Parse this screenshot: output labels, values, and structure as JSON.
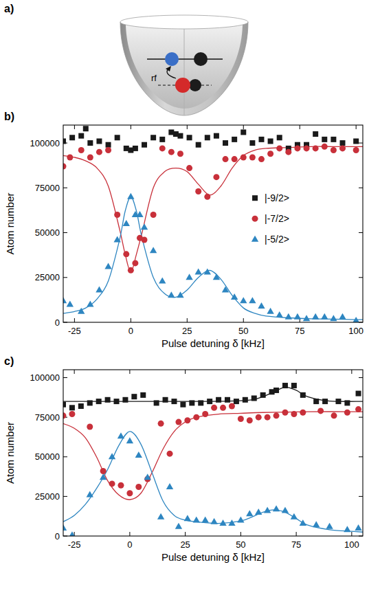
{
  "diagram": {
    "panel": "a)",
    "arrow_label": "rf"
  },
  "chart_data": [
    {
      "type": "scatter",
      "panel": "b)",
      "x_label": "Pulse detuning δ [kHz]",
      "y_label": "Atom number",
      "xlim": [
        -30,
        103
      ],
      "ylim": [
        0,
        110000
      ],
      "xticks": [
        -25,
        0,
        25,
        50,
        75,
        100
      ],
      "yticks": [
        0,
        25000,
        50000,
        75000,
        100000
      ],
      "legend": "right",
      "series": [
        {
          "name": "|-9/2>",
          "color": "#1a1a1a",
          "marker": "square",
          "x": [
            -30,
            -26,
            -22,
            -20,
            -18,
            -14,
            -10,
            -6,
            -2,
            0,
            2,
            6,
            10,
            14,
            18,
            20,
            22,
            26,
            30,
            34,
            38,
            42,
            46,
            50,
            54,
            58,
            62,
            66,
            70,
            74,
            78,
            82,
            86,
            90,
            94,
            100
          ],
          "values": [
            101000,
            103000,
            104000,
            108000,
            100000,
            101000,
            99000,
            103000,
            97000,
            96000,
            97000,
            99000,
            103000,
            102000,
            106000,
            105000,
            104000,
            103000,
            99000,
            103000,
            104000,
            100000,
            102000,
            106000,
            100000,
            102000,
            101000,
            103000,
            97000,
            99000,
            99000,
            105000,
            102000,
            102000,
            100000,
            101000
          ]
        },
        {
          "name": "|-7/2>",
          "color": "#c8303a",
          "marker": "circle",
          "x": [
            -30,
            -27,
            -22,
            -18,
            -14,
            -10,
            -6,
            -2,
            0,
            2,
            4,
            6,
            10,
            14,
            18,
            22,
            26,
            30,
            34,
            38,
            42,
            46,
            50,
            54,
            58,
            62,
            66,
            70,
            74,
            78,
            82,
            86,
            90,
            94,
            100
          ],
          "values": [
            87000,
            92000,
            96000,
            92000,
            95000,
            96000,
            60000,
            38000,
            29000,
            33000,
            47000,
            46000,
            60000,
            97000,
            95000,
            94000,
            86000,
            73000,
            70000,
            81000,
            91000,
            91000,
            92000,
            92000,
            91000,
            94000,
            97000,
            95000,
            97000,
            97000,
            97000,
            98000,
            96000,
            97000,
            96000
          ]
        },
        {
          "name": "|-5/2>",
          "color": "#2e86c1",
          "marker": "triangle",
          "x": [
            -30,
            -27,
            -22,
            -18,
            -14,
            -10,
            -6,
            -2,
            0,
            2,
            4,
            6,
            10,
            14,
            18,
            22,
            26,
            30,
            34,
            38,
            42,
            46,
            50,
            54,
            58,
            62,
            66,
            70,
            74,
            78,
            82,
            86,
            90,
            94,
            100
          ],
          "values": [
            12000,
            10000,
            6000,
            10000,
            18000,
            31000,
            46000,
            55000,
            70000,
            60000,
            60000,
            53000,
            40000,
            23000,
            15000,
            15000,
            25000,
            28000,
            28000,
            25000,
            18000,
            14000,
            12000,
            12000,
            9000,
            6000,
            4000,
            3000,
            3000,
            2000,
            3000,
            3000,
            2000,
            3000,
            1000
          ]
        },
        {
          "type": "line",
          "color": "#c8303a",
          "line_style": "solid",
          "x": [
            -30,
            -25,
            -20,
            -15,
            -10,
            -5,
            -2.5,
            0,
            2.5,
            5,
            10,
            15,
            20,
            25,
            30,
            35,
            40,
            45,
            50,
            55,
            60,
            70,
            80,
            90,
            100,
            103
          ],
          "values": [
            93000,
            92000,
            90000,
            86000,
            76000,
            52000,
            38000,
            28000,
            38000,
            50000,
            75000,
            84000,
            86000,
            84000,
            77000,
            71000,
            76000,
            86000,
            93000,
            96000,
            97000,
            97500,
            98000,
            98000,
            98000,
            98000
          ]
        },
        {
          "type": "line",
          "color": "#2e86c1",
          "line_style": "solid",
          "x": [
            -30,
            -25,
            -20,
            -15,
            -10,
            -5,
            -2.5,
            0,
            2.5,
            5,
            10,
            15,
            20,
            25,
            30,
            35,
            40,
            45,
            50,
            55,
            60,
            70,
            80,
            90,
            100,
            103
          ],
          "values": [
            5000,
            6000,
            8000,
            13000,
            23000,
            46000,
            62000,
            70000,
            62000,
            47000,
            25000,
            16000,
            14000,
            18000,
            25000,
            29000,
            24000,
            15000,
            8000,
            5000,
            3500,
            2500,
            2000,
            1800,
            1500,
            1500
          ]
        }
      ]
    },
    {
      "type": "scatter",
      "panel": "c)",
      "x_label": "Pulse detuning δ [kHz]",
      "y_label": "Atom number",
      "xlim": [
        -30,
        105
      ],
      "ylim": [
        0,
        105000
      ],
      "xticks": [
        -25,
        0,
        25,
        50,
        75,
        100
      ],
      "yticks": [
        0,
        25000,
        50000,
        75000,
        100000
      ],
      "series": [
        {
          "color": "#1a1a1a",
          "marker": "square",
          "x": [
            -30,
            -26,
            -22,
            -18,
            -14,
            -10,
            -6,
            -2,
            2,
            6,
            12,
            16,
            20,
            24,
            28,
            32,
            36,
            40,
            44,
            48,
            52,
            56,
            60,
            64,
            66,
            70,
            74,
            78,
            84,
            88,
            94,
            98,
            103
          ],
          "values": [
            83000,
            81000,
            82000,
            84000,
            85000,
            86000,
            85000,
            86000,
            88000,
            89000,
            84000,
            86000,
            85000,
            83000,
            84000,
            84000,
            85000,
            86000,
            86000,
            85000,
            86000,
            87000,
            89000,
            91000,
            92000,
            95000,
            95000,
            89000,
            85000,
            85000,
            85000,
            84000,
            90000
          ]
        },
        {
          "color": "#c8303a",
          "marker": "circle",
          "x": [
            -30,
            -26,
            -18,
            -12,
            -8,
            -4,
            0,
            4,
            8,
            14,
            18,
            22,
            26,
            30,
            34,
            38,
            42,
            46,
            50,
            54,
            58,
            62,
            66,
            70,
            74,
            78,
            86,
            92,
            98,
            103
          ],
          "values": [
            76000,
            77000,
            69000,
            41000,
            33000,
            32000,
            27000,
            31000,
            36000,
            71000,
            52000,
            72000,
            73000,
            75000,
            77000,
            81000,
            81000,
            82000,
            74000,
            73000,
            75000,
            75000,
            76000,
            78000,
            77000,
            78000,
            79000,
            76000,
            78000,
            80000
          ]
        },
        {
          "color": "#2e86c1",
          "marker": "triangle",
          "x": [
            -30,
            -26,
            -18,
            -12,
            -8,
            -4,
            0,
            4,
            8,
            14,
            18,
            22,
            26,
            30,
            34,
            38,
            42,
            46,
            50,
            54,
            58,
            62,
            66,
            70,
            74,
            78,
            84,
            90,
            98,
            103
          ],
          "values": [
            5000,
            500,
            26000,
            37000,
            50000,
            63000,
            60000,
            51000,
            37000,
            12000,
            31000,
            6000,
            11000,
            10000,
            10000,
            9000,
            8000,
            8000,
            10000,
            14000,
            15000,
            16000,
            17000,
            16000,
            12000,
            8000,
            7000,
            6000,
            4000,
            5000
          ]
        },
        {
          "type": "line",
          "color": "#1a1a1a",
          "line_style": "solid",
          "x": [
            -30,
            -10,
            10,
            30,
            45,
            55,
            60,
            65,
            70,
            75,
            80,
            90,
            105
          ],
          "values": [
            85000,
            85000,
            85000,
            85000,
            85200,
            86000,
            88000,
            91000,
            94000,
            92000,
            88000,
            85200,
            85000
          ]
        },
        {
          "type": "line",
          "color": "#c8303a",
          "line_style": "solid",
          "x": [
            -30,
            -25,
            -20,
            -15,
            -10,
            -5,
            0,
            5,
            10,
            15,
            20,
            25,
            30,
            40,
            50,
            60,
            80,
            105
          ],
          "values": [
            71000,
            68000,
            62000,
            50000,
            35000,
            26000,
            23000,
            27000,
            40000,
            55000,
            66000,
            72000,
            75000,
            77000,
            77500,
            78000,
            78500,
            78500
          ]
        },
        {
          "type": "line",
          "color": "#2e86c1",
          "line_style": "solid",
          "x": [
            -30,
            -25,
            -20,
            -15,
            -10,
            -5,
            0,
            5,
            10,
            15,
            20,
            25,
            30,
            40,
            50,
            55,
            60,
            65,
            70,
            75,
            80,
            90,
            100,
            105
          ],
          "values": [
            9000,
            13000,
            20000,
            30000,
            42000,
            57000,
            66000,
            58000,
            40000,
            22000,
            13000,
            10000,
            9000,
            8000,
            9500,
            12000,
            15000,
            16500,
            15000,
            11000,
            7000,
            4000,
            3000,
            2500
          ]
        }
      ]
    }
  ]
}
